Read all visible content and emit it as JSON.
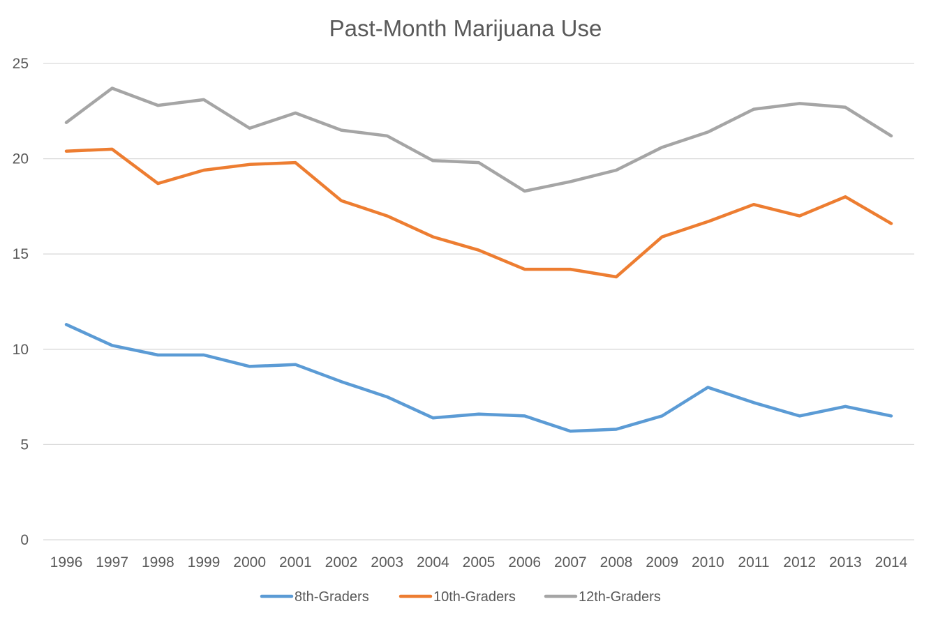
{
  "chart_data": {
    "type": "line",
    "title": "Past-Month Marijuana Use",
    "xlabel": "",
    "ylabel": "",
    "categories": [
      "1996",
      "1997",
      "1998",
      "1999",
      "2000",
      "2001",
      "2002",
      "2003",
      "2004",
      "2005",
      "2006",
      "2007",
      "2008",
      "2009",
      "2010",
      "2011",
      "2012",
      "2013",
      "2014"
    ],
    "ylim": [
      0,
      25
    ],
    "yticks": [
      0,
      5,
      10,
      15,
      20,
      25
    ],
    "grid": true,
    "legend_position": "bottom",
    "series": [
      {
        "name": "8th-Graders",
        "color": "#5b9bd5",
        "values": [
          11.3,
          10.2,
          9.7,
          9.7,
          9.1,
          9.2,
          8.3,
          7.5,
          6.4,
          6.6,
          6.5,
          5.7,
          5.8,
          6.5,
          8.0,
          7.2,
          6.5,
          7.0,
          6.5
        ]
      },
      {
        "name": "10th-Graders",
        "color": "#ed7d31",
        "values": [
          20.4,
          20.5,
          18.7,
          19.4,
          19.7,
          19.8,
          17.8,
          17.0,
          15.9,
          15.2,
          14.2,
          14.2,
          13.8,
          15.9,
          16.7,
          17.6,
          17.0,
          18.0,
          16.6
        ]
      },
      {
        "name": "12th-Graders",
        "color": "#a5a5a5",
        "values": [
          21.9,
          23.7,
          22.8,
          23.1,
          21.6,
          22.4,
          21.5,
          21.2,
          19.9,
          19.8,
          18.3,
          18.8,
          19.4,
          20.6,
          21.4,
          22.6,
          22.9,
          22.7,
          21.2
        ]
      }
    ]
  }
}
